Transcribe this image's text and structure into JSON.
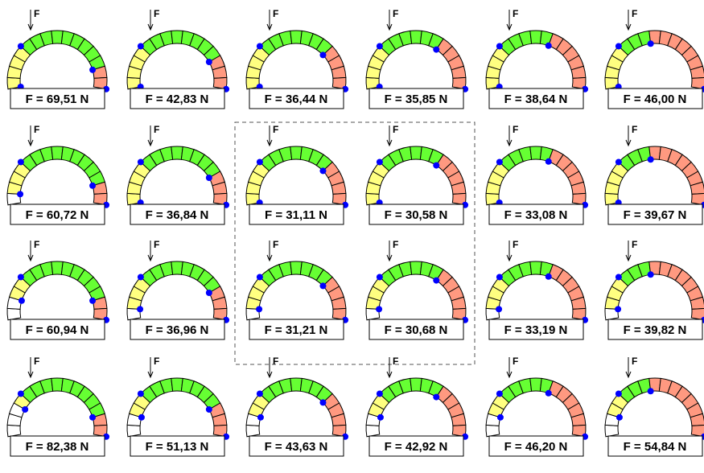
{
  "force_symbol": "F",
  "colors": {
    "yellow": "#ffff80",
    "green": "#66ff33",
    "salmon": "#ff9980",
    "white": "#ffffff",
    "hinge": "#0000ff",
    "stroke": "#000000",
    "dashed_box": "#555555"
  },
  "rows": [
    {
      "arches": [
        {
          "label": "F = 69,51 N",
          "segments": [
            "yellow",
            "yellow",
            "yellow",
            "yellow",
            "green",
            "green",
            "green",
            "green",
            "green",
            "green",
            "green",
            "green",
            "green",
            "salmon",
            "salmon"
          ]
        },
        {
          "label": "F = 42,83 N",
          "segments": [
            "yellow",
            "yellow",
            "yellow",
            "yellow",
            "green",
            "green",
            "green",
            "green",
            "green",
            "green",
            "green",
            "green",
            "salmon",
            "salmon",
            "salmon"
          ]
        },
        {
          "label": "F = 36,44 N",
          "segments": [
            "yellow",
            "yellow",
            "yellow",
            "yellow",
            "green",
            "green",
            "green",
            "green",
            "green",
            "green",
            "green",
            "salmon",
            "salmon",
            "salmon",
            "salmon"
          ]
        },
        {
          "label": "F = 35,85 N",
          "segments": [
            "yellow",
            "yellow",
            "yellow",
            "yellow",
            "green",
            "green",
            "green",
            "green",
            "green",
            "green",
            "salmon",
            "salmon",
            "salmon",
            "salmon",
            "salmon"
          ]
        },
        {
          "label": "F = 38,64 N",
          "segments": [
            "yellow",
            "yellow",
            "yellow",
            "yellow",
            "green",
            "green",
            "green",
            "green",
            "green",
            "salmon",
            "salmon",
            "salmon",
            "salmon",
            "salmon",
            "salmon"
          ]
        },
        {
          "label": "F = 46,00 N",
          "segments": [
            "yellow",
            "yellow",
            "yellow",
            "yellow",
            "green",
            "green",
            "green",
            "salmon",
            "salmon",
            "salmon",
            "salmon",
            "salmon",
            "salmon",
            "salmon",
            "salmon"
          ]
        }
      ]
    },
    {
      "arches": [
        {
          "label": "F = 60,72 N",
          "segments": [
            "white",
            "yellow",
            "yellow",
            "yellow",
            "green",
            "green",
            "green",
            "green",
            "green",
            "green",
            "green",
            "green",
            "green",
            "salmon",
            "salmon"
          ]
        },
        {
          "label": "F = 36,84 N",
          "segments": [
            "yellow",
            "yellow",
            "yellow",
            "yellow",
            "green",
            "green",
            "green",
            "green",
            "green",
            "green",
            "green",
            "green",
            "salmon",
            "salmon",
            "salmon"
          ]
        },
        {
          "label": "F = 31,11 N",
          "segments": [
            "yellow",
            "yellow",
            "yellow",
            "yellow",
            "green",
            "green",
            "green",
            "green",
            "green",
            "green",
            "green",
            "salmon",
            "salmon",
            "salmon",
            "salmon"
          ]
        },
        {
          "label": "F = 30,58 N",
          "segments": [
            "yellow",
            "yellow",
            "yellow",
            "yellow",
            "green",
            "green",
            "green",
            "green",
            "green",
            "green",
            "salmon",
            "salmon",
            "salmon",
            "salmon",
            "salmon"
          ]
        },
        {
          "label": "F = 33,08 N",
          "segments": [
            "yellow",
            "yellow",
            "yellow",
            "yellow",
            "green",
            "green",
            "green",
            "green",
            "green",
            "salmon",
            "salmon",
            "salmon",
            "salmon",
            "salmon",
            "salmon"
          ]
        },
        {
          "label": "F = 39,67 N",
          "segments": [
            "yellow",
            "yellow",
            "yellow",
            "yellow",
            "green",
            "green",
            "green",
            "salmon",
            "salmon",
            "salmon",
            "salmon",
            "salmon",
            "salmon",
            "salmon",
            "salmon"
          ]
        }
      ]
    },
    {
      "arches": [
        {
          "label": "F = 60,94 N",
          "segments": [
            "white",
            "white",
            "yellow",
            "yellow",
            "green",
            "green",
            "green",
            "green",
            "green",
            "green",
            "green",
            "green",
            "green",
            "salmon",
            "salmon"
          ]
        },
        {
          "label": "F = 36,96 N",
          "segments": [
            "white",
            "yellow",
            "yellow",
            "yellow",
            "green",
            "green",
            "green",
            "green",
            "green",
            "green",
            "green",
            "green",
            "salmon",
            "salmon",
            "salmon"
          ]
        },
        {
          "label": "F = 31,21 N",
          "segments": [
            "white",
            "yellow",
            "yellow",
            "yellow",
            "green",
            "green",
            "green",
            "green",
            "green",
            "green",
            "green",
            "salmon",
            "salmon",
            "salmon",
            "salmon"
          ]
        },
        {
          "label": "F = 30,68 N",
          "segments": [
            "white",
            "yellow",
            "yellow",
            "yellow",
            "green",
            "green",
            "green",
            "green",
            "green",
            "green",
            "salmon",
            "salmon",
            "salmon",
            "salmon",
            "salmon"
          ]
        },
        {
          "label": "F = 33,19 N",
          "segments": [
            "white",
            "yellow",
            "yellow",
            "yellow",
            "green",
            "green",
            "green",
            "green",
            "green",
            "salmon",
            "salmon",
            "salmon",
            "salmon",
            "salmon",
            "salmon"
          ]
        },
        {
          "label": "F = 39,82 N",
          "segments": [
            "white",
            "yellow",
            "yellow",
            "yellow",
            "green",
            "green",
            "green",
            "salmon",
            "salmon",
            "salmon",
            "salmon",
            "salmon",
            "salmon",
            "salmon",
            "salmon"
          ]
        }
      ]
    },
    {
      "arches": [
        {
          "label": "F = 82,38 N",
          "segments": [
            "white",
            "white",
            "white",
            "yellow",
            "green",
            "green",
            "green",
            "green",
            "green",
            "green",
            "green",
            "green",
            "green",
            "salmon",
            "salmon"
          ]
        },
        {
          "label": "F = 51,13 N",
          "segments": [
            "white",
            "white",
            "yellow",
            "yellow",
            "green",
            "green",
            "green",
            "green",
            "green",
            "green",
            "green",
            "green",
            "salmon",
            "salmon",
            "salmon"
          ]
        },
        {
          "label": "F = 43,63 N",
          "segments": [
            "white",
            "white",
            "yellow",
            "yellow",
            "green",
            "green",
            "green",
            "green",
            "green",
            "green",
            "green",
            "salmon",
            "salmon",
            "salmon",
            "salmon"
          ]
        },
        {
          "label": "F = 42,92 N",
          "segments": [
            "white",
            "white",
            "yellow",
            "yellow",
            "green",
            "green",
            "green",
            "green",
            "green",
            "green",
            "salmon",
            "salmon",
            "salmon",
            "salmon",
            "salmon"
          ]
        },
        {
          "label": "F = 46,20 N",
          "segments": [
            "white",
            "white",
            "yellow",
            "yellow",
            "green",
            "green",
            "green",
            "green",
            "green",
            "salmon",
            "salmon",
            "salmon",
            "salmon",
            "salmon",
            "salmon"
          ]
        },
        {
          "label": "F = 54,84 N",
          "segments": [
            "white",
            "white",
            "yellow",
            "yellow",
            "green",
            "green",
            "green",
            "salmon",
            "salmon",
            "salmon",
            "salmon",
            "salmon",
            "salmon",
            "salmon",
            "salmon"
          ]
        }
      ]
    }
  ]
}
